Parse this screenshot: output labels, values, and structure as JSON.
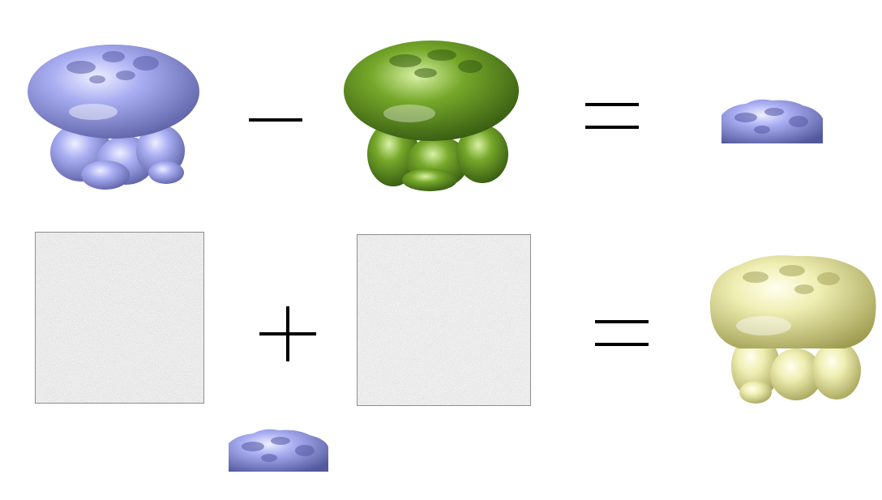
{
  "diagram": {
    "operators": {
      "row1_op": "minus",
      "row1_result": "equals",
      "row2_op": "plus",
      "row2_result": "equals"
    },
    "objects": {
      "map_full": {
        "color": "#9ea2ee",
        "shade": "#5a5ea8"
      },
      "map_model": {
        "color": "#6a9a22",
        "shade": "#2f5410"
      },
      "map_difference": {
        "color": "#9ea2ee",
        "shade": "#5a5ea8"
      },
      "noise_a": {
        "color": "#a0a0a0"
      },
      "noise_b": {
        "color": "#a4a4a4"
      },
      "map_difference_small": {
        "color": "#9ea2ee",
        "shade": "#5a5ea8"
      },
      "map_result": {
        "color": "#ecebae",
        "shade": "#a6a45a"
      }
    }
  }
}
